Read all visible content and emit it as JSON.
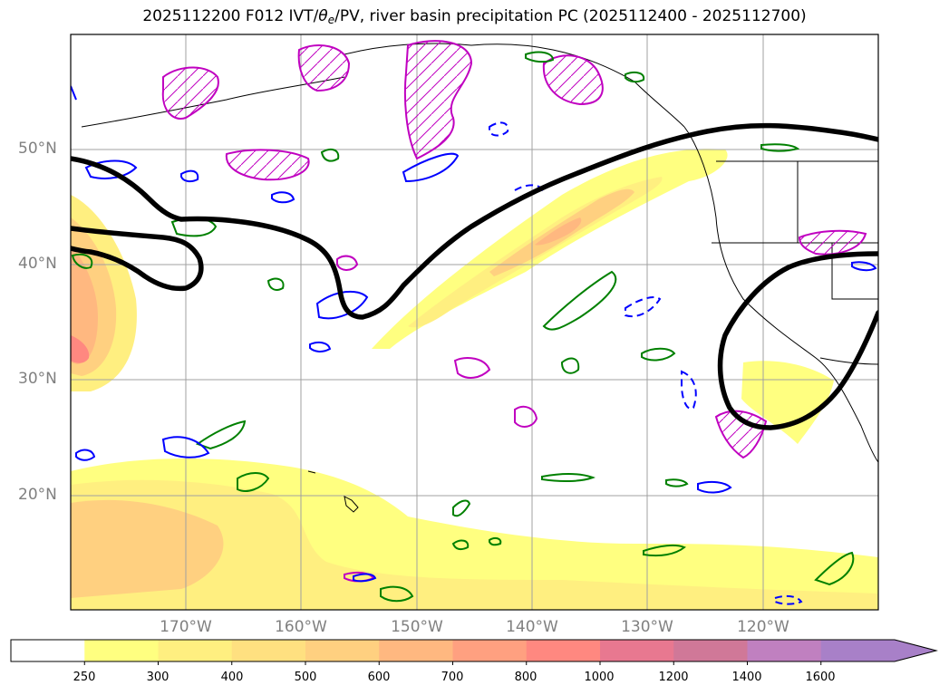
{
  "title": {
    "prefix": "2025112200 F012 IVT/",
    "theta": "θ",
    "theta_sub": "e",
    "suffix": "/PV, river basin precipitation PC (2025112400 - 2025112700)"
  },
  "lat_labels": [
    "50°N",
    "40°N",
    "30°N",
    "20°N"
  ],
  "lon_labels": [
    "170°W",
    "160°W",
    "150°W",
    "140°W",
    "130°W",
    "120°W"
  ],
  "colorbar": {
    "ticks": [
      "250",
      "300",
      "400",
      "500",
      "600",
      "700",
      "800",
      "1000",
      "1200",
      "1400",
      "1600"
    ],
    "colors": [
      "#ffffff",
      "#ffff80",
      "#ffef80",
      "#ffe080",
      "#ffd080",
      "#ffb880",
      "#ffa080",
      "#ff8880",
      "#e87890",
      "#d07898",
      "#c080c0",
      "#a880c8"
    ]
  },
  "colors": {
    "ivt_contour": "#000000",
    "theta_e_contour": "#0000ff",
    "pv_contour": "#008000",
    "precip_contour": "#c000c0",
    "grid": "#a0a0a0"
  }
}
